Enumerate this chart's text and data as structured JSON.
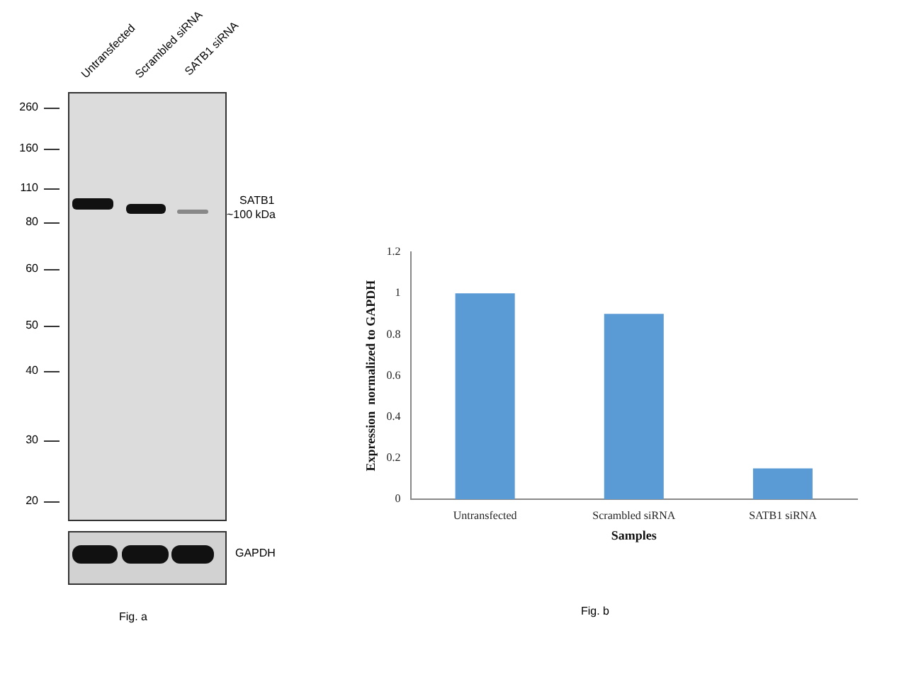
{
  "chart_data": [
    {
      "type": "other",
      "annotations": [
        "Untransfected",
        "Scrambled siRNA",
        "SATB1 siRNA",
        "260",
        "160",
        "110",
        "80",
        "60",
        "50",
        "40",
        "30",
        "20",
        "SATB1",
        "~100 kDa",
        "GAPDH",
        "Fig. a"
      ]
    },
    {
      "type": "bar",
      "categories": [
        "Untransfected",
        "Scrambled siRNA",
        "SATB1 siRNA"
      ],
      "values": [
        1,
        0.9,
        0.15
      ],
      "color": "#5b9bd5",
      "xlabel": "Samples",
      "ylabel": "Expression  normalized to GAPDH",
      "ylim": [
        0,
        1.2
      ],
      "yticks": [
        0,
        0.2,
        0.4,
        0.6,
        0.8,
        1,
        1.2
      ],
      "grid": false,
      "legend": false,
      "annotations": [
        "Fig. b"
      ]
    }
  ]
}
